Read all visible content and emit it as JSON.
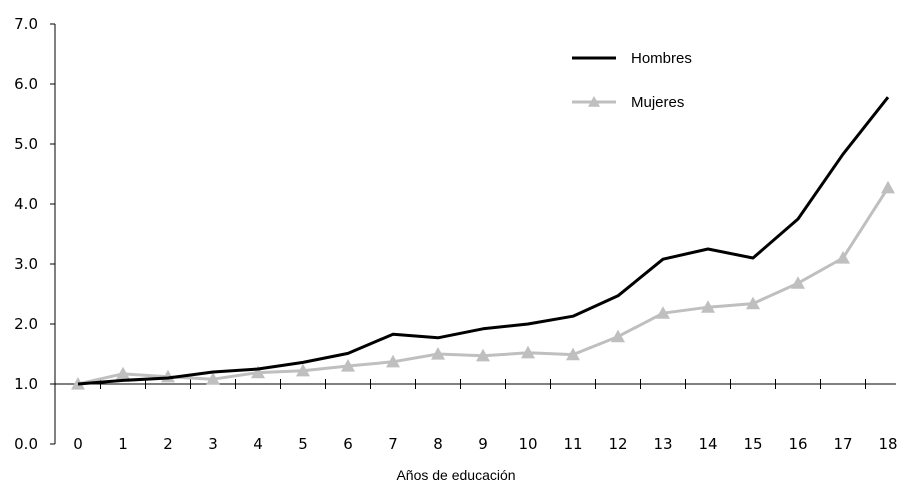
{
  "chart_data": {
    "type": "line",
    "xlabel": "Años de educación",
    "ylabel": "",
    "ylim": [
      0,
      7
    ],
    "yticks": [
      "0.0",
      "1.0",
      "2.0",
      "3.0",
      "4.0",
      "5.0",
      "6.0",
      "7.0"
    ],
    "categories": [
      "0",
      "1",
      "2",
      "3",
      "4",
      "5",
      "6",
      "7",
      "8",
      "9",
      "10",
      "11",
      "12",
      "13",
      "14",
      "15",
      "16",
      "17",
      "18"
    ],
    "grid": false,
    "legend_position": "top-right",
    "series": [
      {
        "name": "Hombres",
        "color": "#000000",
        "marker": "none",
        "values": [
          1.0,
          1.06,
          1.1,
          1.2,
          1.25,
          1.36,
          1.51,
          1.83,
          1.77,
          1.92,
          2.0,
          2.13,
          2.47,
          3.08,
          3.25,
          3.1,
          3.75,
          4.83,
          5.78
        ]
      },
      {
        "name": "Mujeres",
        "color": "#bfbfbf",
        "marker": "triangle",
        "values": [
          1.0,
          1.17,
          1.12,
          1.08,
          1.19,
          1.22,
          1.3,
          1.37,
          1.5,
          1.47,
          1.52,
          1.49,
          1.79,
          2.18,
          2.28,
          2.34,
          2.68,
          3.1,
          4.27
        ]
      }
    ]
  }
}
